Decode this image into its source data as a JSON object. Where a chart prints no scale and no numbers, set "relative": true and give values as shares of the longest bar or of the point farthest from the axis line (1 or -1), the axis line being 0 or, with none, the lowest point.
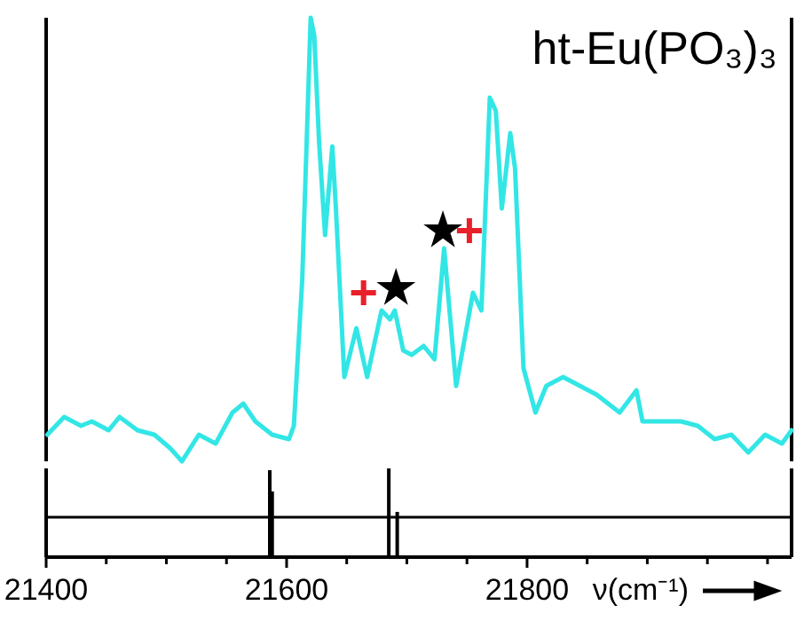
{
  "chart_data": [
    {
      "type": "line",
      "title": "ht-Eu(PO₃)₃",
      "relative": true,
      "xlim": [
        21400,
        22020
      ],
      "series": [
        {
          "color": "#33e6e6",
          "x": [
            21401,
            21415,
            21429,
            21438,
            21452,
            21461,
            21476,
            21490,
            21503,
            21513,
            21527,
            21541,
            21555,
            21564,
            21574,
            21588,
            21602,
            21606,
            21613,
            21620,
            21623,
            21627,
            21632,
            21638,
            21641,
            21648,
            21658,
            21667,
            21679,
            21686,
            21690,
            21697,
            21704,
            21714,
            21723,
            21731,
            21741,
            21755,
            21762,
            21769,
            21774,
            21779,
            21786,
            21790,
            21797,
            21807,
            21816,
            21830,
            21844,
            21858,
            21877,
            21891,
            21896,
            21910,
            21928,
            21942,
            21956,
            21970,
            21984,
            21998,
            22012,
            22020
          ],
          "values": [
            0.06,
            0.1,
            0.08,
            0.09,
            0.07,
            0.1,
            0.07,
            0.06,
            0.03,
            0,
            0.06,
            0.04,
            0.11,
            0.13,
            0.09,
            0.06,
            0.05,
            0.08,
            0.41,
            1,
            0.96,
            0.72,
            0.51,
            0.71,
            0.57,
            0.19,
            0.3,
            0.19,
            0.34,
            0.32,
            0.34,
            0.25,
            0.24,
            0.26,
            0.23,
            0.48,
            0.17,
            0.38,
            0.34,
            0.82,
            0.79,
            0.57,
            0.74,
            0.66,
            0.21,
            0.11,
            0.17,
            0.19,
            0.17,
            0.15,
            0.11,
            0.16,
            0.09,
            0.09,
            0.09,
            0.08,
            0.05,
            0.06,
            0.02,
            0.06,
            0.04,
            0.07
          ]
        },
        {
          "type": "scatter",
          "marker": "cross",
          "color": "#e8202a",
          "x": [
            21664,
            21752
          ],
          "values": [
            0.38,
            0.52
          ]
        },
        {
          "type": "scatter",
          "marker": "star",
          "color": "#000000",
          "x": [
            21691,
            21730
          ],
          "values": [
            0.39,
            0.52
          ]
        }
      ]
    },
    {
      "type": "bar",
      "relative": true,
      "xlim": [
        21400,
        22020
      ],
      "xlabel": "ν(cm⁻¹)",
      "xticks": [
        21400,
        {
          "value": 21450,
          "label": null
        },
        {
          "value": 21500,
          "label": null
        },
        {
          "value": 21550,
          "label": null
        },
        21600,
        {
          "value": 21650,
          "label": null
        },
        {
          "value": 21700,
          "label": null
        },
        {
          "value": 21750,
          "label": null
        },
        21800,
        {
          "value": 21850,
          "label": null
        },
        {
          "value": 21900,
          "label": null
        },
        {
          "value": 21950,
          "label": null
        },
        {
          "value": 22000,
          "label": null
        }
      ],
      "series": [
        {
          "color": "#000000",
          "x": [
            21586,
            21588,
            21685,
            21692
          ],
          "values": [
            0.98,
            0.74,
            1,
            0.51
          ]
        }
      ],
      "ref_lines": [
        {
          "axis": "y",
          "value": 0.45,
          "color": "#000000"
        }
      ]
    }
  ]
}
